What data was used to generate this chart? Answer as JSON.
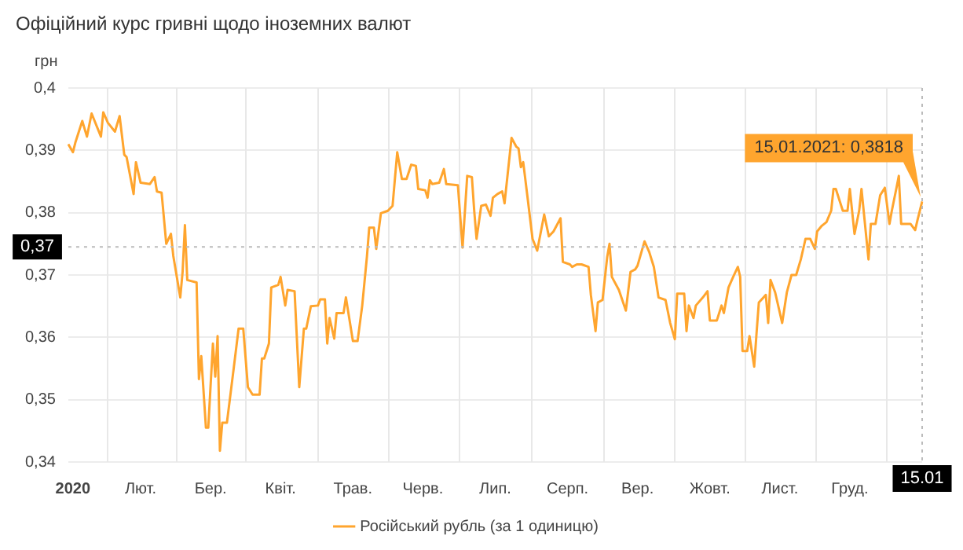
{
  "chart_data": {
    "type": "line",
    "title": "Офіційний курс гривні щодо іноземних валют",
    "ylabel": "грн",
    "categories": [
      null,
      null,
      "2020",
      null,
      null,
      null,
      null,
      null,
      null,
      null,
      null,
      null,
      null,
      null,
      null,
      null,
      null,
      null,
      null,
      null,
      null,
      null,
      null,
      null,
      null,
      null,
      null,
      null,
      null,
      null,
      null,
      "Лют.",
      null,
      null,
      null,
      null,
      null,
      null,
      null,
      null,
      null,
      null,
      null,
      null,
      null,
      null,
      null,
      null,
      null,
      null,
      null,
      null,
      null,
      null,
      null,
      null,
      null,
      null,
      null,
      null,
      null,
      "Бер.",
      null,
      null,
      null,
      null,
      null,
      null,
      null,
      null,
      null,
      null,
      null,
      null,
      null,
      null,
      null,
      null,
      null,
      null,
      null,
      null,
      null,
      null,
      null,
      null,
      null,
      null,
      null,
      null,
      null,
      "Квіт.",
      null,
      null,
      null,
      null,
      null,
      null,
      null,
      null,
      null,
      null,
      null,
      null,
      null,
      null,
      null,
      null,
      null,
      null,
      null,
      null,
      null,
      null,
      null,
      null,
      null,
      null,
      null,
      null,
      null,
      null,
      "Трав.",
      null,
      null,
      null,
      null,
      null,
      null,
      null,
      null,
      null,
      null,
      null,
      null,
      null,
      null,
      null,
      null,
      null,
      null,
      null,
      null,
      null,
      null,
      null,
      null,
      null,
      null,
      null,
      null,
      null,
      "Черв.",
      null,
      null,
      null,
      null,
      null,
      null,
      null,
      null,
      null,
      null,
      null,
      null,
      null,
      null,
      null,
      null,
      null,
      null,
      null,
      null,
      null,
      null,
      null,
      null,
      null,
      null,
      null,
      null,
      null,
      null,
      "Лип.",
      null,
      null,
      null,
      null,
      null,
      null,
      null,
      null,
      null,
      null,
      null,
      null,
      null,
      null,
      null,
      null,
      null,
      null,
      null,
      null,
      null,
      null,
      null,
      null,
      null,
      null,
      null,
      null,
      null,
      null,
      "Серп.",
      null,
      null,
      null,
      null,
      null,
      null,
      null,
      null,
      null,
      null,
      null,
      null,
      null,
      null,
      null,
      null,
      null,
      null,
      null,
      null,
      null,
      null,
      null,
      null,
      null,
      null,
      null,
      null,
      null,
      "Вер.",
      null,
      null,
      null,
      null,
      null,
      null,
      null,
      null,
      null,
      null,
      null,
      null,
      null,
      null,
      null,
      null,
      null,
      null,
      null,
      null,
      null,
      null,
      null,
      null,
      null,
      null,
      null,
      null,
      null,
      null,
      "Жовт.",
      null,
      null,
      null,
      null,
      null,
      null,
      null,
      null,
      null,
      null,
      null,
      null,
      null,
      null,
      null,
      null,
      null,
      null,
      null,
      null,
      null,
      null,
      null,
      null,
      null,
      null,
      null,
      null,
      null,
      "Лист.",
      null,
      null,
      null,
      null,
      null,
      null,
      null,
      null,
      null,
      null,
      null,
      null,
      null,
      null,
      null,
      null,
      null,
      null,
      null,
      null,
      null,
      null,
      null,
      null,
      null,
      null,
      null,
      null,
      null,
      "Груд.",
      null,
      null,
      null,
      null,
      null,
      null,
      null,
      null,
      null,
      null,
      null,
      null,
      null,
      null,
      null,
      null,
      null,
      null,
      null,
      null,
      null,
      null,
      null,
      null,
      null,
      null,
      null,
      null,
      null,
      null,
      "15.01"
    ],
    "series": [
      {
        "name": "Російський рубль (за 1 одиницю)",
        "color": "#ffa52e",
        "values": [
          0.391,
          null,
          0.3897,
          0.3912,
          null,
          null,
          0.3947,
          null,
          0.3922,
          null,
          0.3959,
          null,
          null,
          null,
          0.3922,
          0.3961,
          null,
          0.3944,
          null,
          null,
          0.393,
          null,
          0.3955,
          null,
          0.3893,
          0.3889,
          null,
          null,
          0.383,
          0.3881,
          null,
          0.3848,
          null,
          null,
          null,
          0.3846,
          null,
          0.3857,
          0.3834,
          null,
          0.3832,
          null,
          0.375,
          null,
          0.3766,
          0.3731,
          null,
          null,
          0.3664,
          0.3705,
          0.378,
          0.3692,
          null,
          null,
          null,
          0.3688,
          0.3533,
          0.357,
          null,
          0.3455,
          0.3455,
          null,
          0.359,
          0.3537,
          0.3602,
          0.3418,
          0.3463,
          null,
          0.3463,
          null,
          null,
          0.3553,
          null,
          0.3614,
          null,
          0.3614,
          null,
          0.352,
          null,
          0.3508,
          null,
          null,
          0.3508,
          0.3566,
          0.3566,
          null,
          0.359,
          0.368,
          null,
          null,
          0.3684,
          0.3697,
          null,
          0.3651,
          0.3676,
          null,
          null,
          0.3674,
          null,
          0.352,
          null,
          0.3614,
          0.3614,
          null,
          0.365,
          null,
          null,
          0.3651,
          0.3661,
          null,
          0.3661,
          0.359,
          0.3631,
          null,
          0.3598,
          0.3639,
          null,
          null,
          0.3639,
          0.3664,
          null,
          null,
          0.3594,
          null,
          0.3594,
          null,
          0.3651,
          null,
          0.3729,
          0.3776,
          null,
          0.3776,
          0.3742,
          null,
          0.3799,
          null,
          null,
          0.3803,
          null,
          0.3811,
          null,
          0.3897,
          null,
          0.3854,
          null,
          0.3854,
          null,
          0.3877,
          null,
          0.3875,
          0.3838,
          null,
          null,
          0.3836,
          0.3824,
          0.3852,
          0.3846,
          null,
          null,
          0.3848,
          null,
          0.387,
          0.3846,
          null,
          null,
          null,
          null,
          0.3844,
          null,
          0.3744,
          null,
          0.3859,
          null,
          0.3857,
          0.3803,
          0.3758,
          null,
          0.3811,
          null,
          0.3813,
          null,
          0.3795,
          0.3824,
          null,
          0.383,
          null,
          0.3834,
          0.3815,
          null,
          null,
          0.392,
          null,
          0.3906,
          0.3903,
          0.3873,
          0.3881,
          null,
          0.382,
          null,
          0.3758,
          null,
          0.3739,
          null,
          null,
          0.3797,
          null,
          0.3762,
          null,
          0.377,
          null,
          null,
          0.3791,
          0.3721,
          null,
          null,
          0.3717,
          0.3713,
          null,
          0.3717,
          null,
          0.3717,
          null,
          null,
          0.3713,
          0.3668,
          null,
          0.361,
          0.3656,
          null,
          0.366,
          null,
          0.3729,
          0.375,
          0.3697,
          null,
          null,
          0.3676,
          null,
          null,
          0.3643,
          null,
          0.3705,
          null,
          0.3709,
          0.3715,
          null,
          null,
          0.3754,
          null,
          0.3737,
          null,
          0.3713,
          null,
          0.3664,
          null,
          null,
          0.366,
          null,
          0.3623,
          null,
          0.3597,
          0.367,
          null,
          null,
          0.367,
          0.361,
          0.3651,
          null,
          0.3631,
          0.3651,
          null,
          null,
          0.3664,
          null,
          0.3674,
          0.3627,
          null,
          null,
          0.3627,
          null,
          0.3651,
          0.3639,
          null,
          0.368,
          null,
          0.3697,
          null,
          0.3713,
          0.3697,
          0.3578,
          null,
          0.3578,
          0.3602,
          null,
          0.3553,
          0.3606,
          0.3656,
          null,
          null,
          0.3668,
          0.3623,
          0.3692,
          null,
          0.3672,
          null,
          null,
          0.3623,
          null,
          0.3672,
          null,
          0.37,
          null,
          0.37,
          null,
          0.3725,
          null,
          0.3758,
          null,
          0.3758,
          null,
          0.3742,
          0.377,
          null,
          0.3779,
          null,
          0.3785,
          null,
          0.3803,
          0.3838,
          0.3838,
          null,
          null,
          0.3803,
          null,
          0.3803,
          0.3838,
          null,
          0.3766,
          null,
          0.3803,
          0.3838,
          null,
          null,
          0.3725,
          0.3782,
          null,
          0.3782,
          null,
          0.3828,
          null,
          0.384,
          null,
          0.3782,
          0.3803,
          null,
          0.384,
          0.3859,
          0.3782,
          null,
          null,
          null,
          0.3782,
          null,
          0.3772,
          0.3788,
          null,
          0.3818
        ]
      }
    ],
    "ylim": [
      0.34,
      0.4
    ],
    "yticks": [
      {
        "value": 0.34,
        "label": "0,34"
      },
      {
        "value": 0.35,
        "label": "0,35"
      },
      {
        "value": 0.36,
        "label": "0,36"
      },
      {
        "value": 0.37,
        "label": "0,37"
      },
      {
        "value": 0.38,
        "label": "0,38"
      },
      {
        "value": 0.39,
        "label": "0,39"
      },
      {
        "value": 0.4,
        "label": "0,4"
      }
    ],
    "ref_lines": [
      {
        "axis": "y",
        "value": 0.3745,
        "label": "0,37",
        "color": "#bbbbbb",
        "line_style": "dotted"
      },
      {
        "axis": "x",
        "value": "15.01",
        "label": "15.01",
        "color": "#bbbbbb",
        "line_style": "dotted"
      }
    ],
    "annotations": [
      {
        "text": "15.01.2021: 0,3818",
        "x": "15.01",
        "y": 0.3818
      }
    ],
    "grid": true,
    "legend": "bottom",
    "marker": "none",
    "line_style": "solid"
  }
}
